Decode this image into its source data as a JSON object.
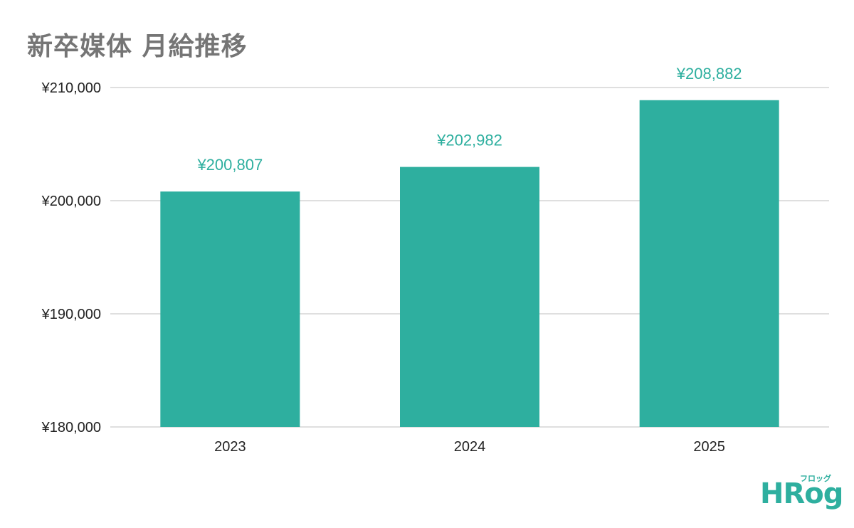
{
  "chart_data": {
    "type": "bar",
    "title": "新卒媒体 月給推移",
    "categories": [
      "2023",
      "2024",
      "2025"
    ],
    "series": [
      {
        "values": [
          200807,
          202982,
          208882
        ]
      }
    ],
    "data_labels": [
      "¥200,807",
      "¥202,982",
      "¥208,882"
    ],
    "y_ticks": [
      180000,
      190000,
      200000,
      210000
    ],
    "y_tick_labels": [
      "¥180,000",
      "¥190,000",
      "¥200,000",
      "¥210,000"
    ],
    "ylim": [
      180000,
      210000
    ],
    "grid": true,
    "legend": "none",
    "xlabel": "",
    "ylabel": "",
    "colors": {
      "bar": "#2eaf9f",
      "data_label": "#2eaf9f",
      "grid": "#cccccc",
      "axis_text": "#222222",
      "title": "#757575"
    }
  },
  "logo": {
    "main": "HRog",
    "sub": "フロッグ"
  }
}
